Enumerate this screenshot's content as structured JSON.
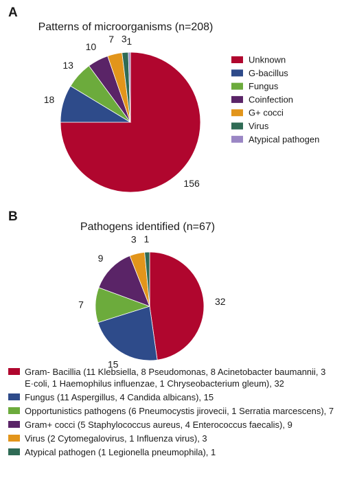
{
  "panel_a": {
    "letter": "A",
    "chart_data": {
      "type": "pie",
      "title": "Patterns of microorganisms (n=208)",
      "slices": [
        {
          "label": "Unknown",
          "value": 156,
          "color": "#b0062e"
        },
        {
          "label": "G-bacillus",
          "value": 18,
          "color": "#2e4b8a"
        },
        {
          "label": "Fungus",
          "value": 13,
          "color": "#6cab3c"
        },
        {
          "label": "Coinfection",
          "value": 10,
          "color": "#5a2467"
        },
        {
          "label": "G+ cocci",
          "value": 7,
          "color": "#e2951b"
        },
        {
          "label": "Virus",
          "value": 3,
          "color": "#2f6b55"
        },
        {
          "label": "Atypical pathogen",
          "value": 1,
          "color": "#9a86c4"
        }
      ],
      "legend_placement": "right"
    }
  },
  "panel_b": {
    "letter": "B",
    "chart_data": {
      "type": "pie",
      "title": "Pathogens identified (n=67)",
      "slices": [
        {
          "label": "Gram- Bacillia (11 Klebsiella, 8 Pseudomonas, 8 Acinetobacter baumannii, 3 E·coli, 1 Haemophilus influenzae, 1 Chryseobacterium gleum), 32",
          "value": 32,
          "color": "#b0062e"
        },
        {
          "label": "Fungus (11 Aspergillus, 4 Candida albicans), 15",
          "value": 15,
          "color": "#2e4b8a"
        },
        {
          "label": "Opportunistics pathogens (6 Pneumocystis jirovecii, 1 Serratia marcescens), 7",
          "value": 7,
          "color": "#6cab3c"
        },
        {
          "label": "Gram+ cocci (5 Staphylococcus aureus, 4 Enterococcus faecalis), 9",
          "value": 9,
          "color": "#5a2467"
        },
        {
          "label": "Virus (2 Cytomegalovirus, 1 Influenza virus), 3",
          "value": 3,
          "color": "#e2951b"
        },
        {
          "label": "Atypical pathogen (1 Legionella pneumophila), 1",
          "value": 1,
          "color": "#2f6b55"
        }
      ],
      "legend_placement": "bottom"
    }
  }
}
